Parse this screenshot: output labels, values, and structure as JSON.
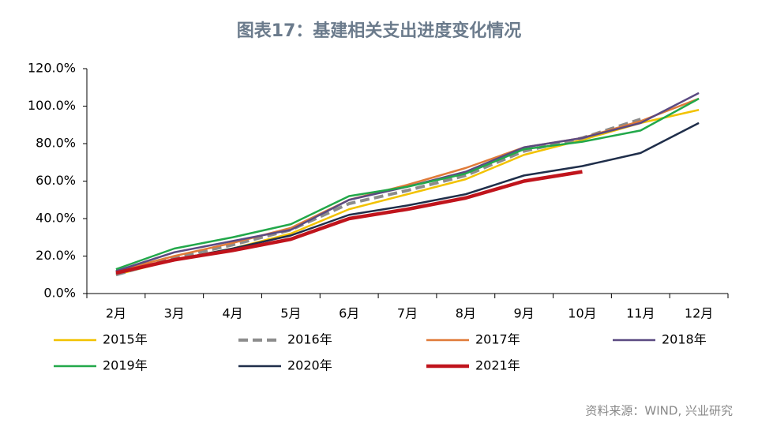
{
  "chart_data": {
    "type": "line",
    "title": "图表17：基建相关支出进度变化情况",
    "categories": [
      "2月",
      "3月",
      "4月",
      "5月",
      "6月",
      "7月",
      "8月",
      "9月",
      "10月",
      "11月",
      "12月"
    ],
    "series": [
      {
        "name": "2015年",
        "color": "#f2c200",
        "values": [
          10,
          18,
          24,
          32,
          45,
          53,
          61,
          74,
          82,
          91,
          98
        ]
      },
      {
        "name": "2016年",
        "color": "#8c8c8c",
        "dashed": true,
        "values": [
          10,
          19,
          26,
          34,
          48,
          55,
          63,
          76,
          83,
          93,
          null
        ]
      },
      {
        "name": "2017年",
        "color": "#e07b39",
        "values": [
          12,
          20,
          27,
          35,
          50,
          58,
          67,
          78,
          83,
          92,
          104
        ]
      },
      {
        "name": "2018年",
        "color": "#5b4a82",
        "values": [
          12,
          22,
          28,
          34,
          50,
          57,
          65,
          78,
          83,
          91,
          107
        ]
      },
      {
        "name": "2019年",
        "color": "#22a84a",
        "values": [
          13,
          24,
          30,
          37,
          52,
          57,
          64,
          77,
          81,
          87,
          104
        ]
      },
      {
        "name": "2020年",
        "color": "#1f2e4a",
        "values": [
          11,
          18,
          24,
          31,
          42,
          47,
          53,
          63,
          68,
          75,
          91
        ]
      },
      {
        "name": "2021年",
        "color": "#c0141c",
        "thick": true,
        "values": [
          11,
          18,
          23,
          29,
          40,
          45,
          51,
          60,
          65,
          null,
          null
        ]
      }
    ],
    "ylim": [
      0,
      120
    ],
    "yticks": [
      {
        "value": 0,
        "label": "0.0%"
      },
      {
        "value": 20,
        "label": "20.0%"
      },
      {
        "value": 40,
        "label": "40.0%"
      },
      {
        "value": 60,
        "label": "60.0%"
      },
      {
        "value": 80,
        "label": "80.0%"
      },
      {
        "value": 100,
        "label": "100.0%"
      },
      {
        "value": 120,
        "label": "120.0%"
      }
    ],
    "grid": false,
    "source": "资料来源：WIND, 兴业研究"
  }
}
